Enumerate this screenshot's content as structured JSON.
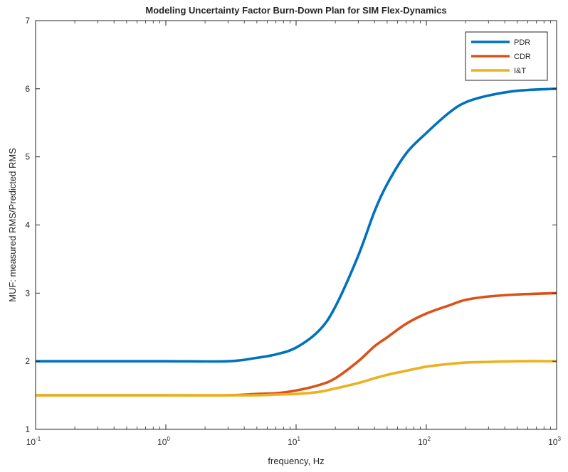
{
  "chart_data": {
    "type": "line",
    "title": "Modeling Uncertainty Factor Burn-Down Plan for SIM Flex-Dynamics",
    "xlabel": "frequency, Hz",
    "ylabel": "MUF: measured RMS/Predicted RMS",
    "xscale": "log",
    "xlim": [
      0.1,
      1000
    ],
    "ylim": [
      1,
      7
    ],
    "grid": false,
    "legend_position": "top-right",
    "x_ticks": [
      {
        "base": "10",
        "exp": "-1",
        "value": 0.1
      },
      {
        "base": "10",
        "exp": "0",
        "value": 1
      },
      {
        "base": "10",
        "exp": "1",
        "value": 10
      },
      {
        "base": "10",
        "exp": "2",
        "value": 100
      },
      {
        "base": "10",
        "exp": "3",
        "value": 1000
      }
    ],
    "y_ticks": [
      "1",
      "2",
      "3",
      "4",
      "5",
      "6",
      "7"
    ],
    "x": [
      0.1,
      0.3,
      1,
      3,
      5,
      7,
      10,
      15,
      20,
      30,
      40,
      50,
      70,
      100,
      150,
      200,
      300,
      500,
      1000
    ],
    "series": [
      {
        "name": "PDR",
        "color": "#0072BD",
        "values": [
          2.0,
          2.0,
          2.0,
          2.0,
          2.05,
          2.1,
          2.2,
          2.45,
          2.8,
          3.55,
          4.2,
          4.6,
          5.05,
          5.35,
          5.65,
          5.8,
          5.9,
          5.97,
          6.0
        ]
      },
      {
        "name": "CDR",
        "color": "#D95319",
        "values": [
          1.5,
          1.5,
          1.5,
          1.5,
          1.52,
          1.53,
          1.57,
          1.65,
          1.75,
          2.0,
          2.22,
          2.35,
          2.55,
          2.7,
          2.82,
          2.9,
          2.95,
          2.98,
          3.0
        ]
      },
      {
        "name": "I&T",
        "color": "#EDB120",
        "values": [
          1.5,
          1.5,
          1.5,
          1.5,
          1.5,
          1.51,
          1.52,
          1.55,
          1.6,
          1.68,
          1.75,
          1.8,
          1.86,
          1.92,
          1.96,
          1.98,
          1.99,
          2.0,
          2.0
        ]
      }
    ]
  }
}
